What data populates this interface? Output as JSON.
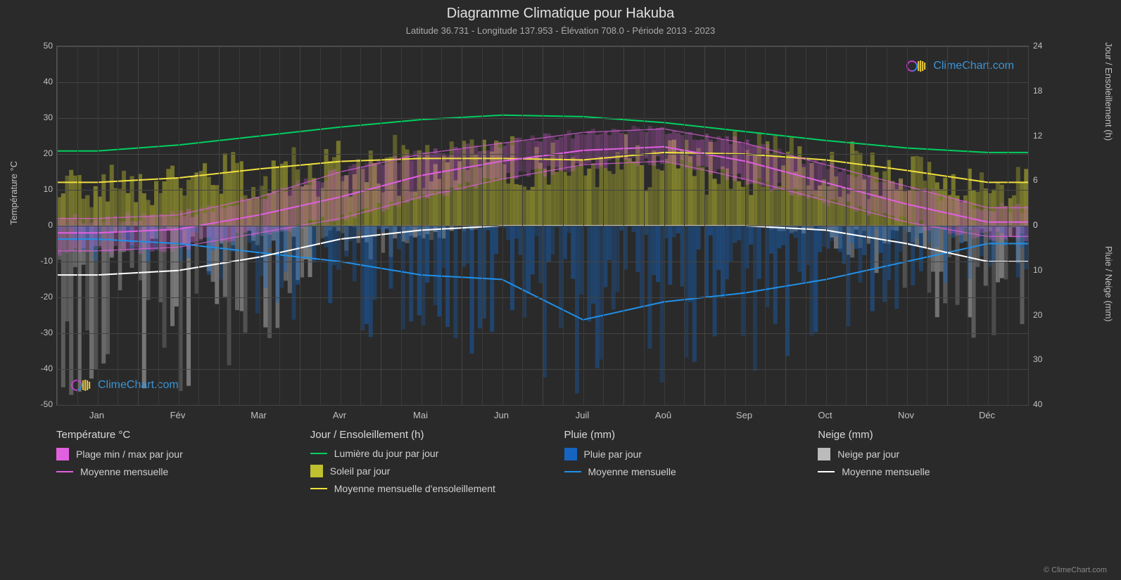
{
  "title": "Diagramme Climatique pour Hakuba",
  "subtitle": "Latitude 36.731 - Longitude 137.953 - Élévation 708.0 - Période 2013 - 2023",
  "brand_text": "ClimeChart.com",
  "copyright": "© ClimeChart.com",
  "background_color": "#2a2a2a",
  "grid_color": "#444444",
  "grid_sub_color": "#3a3a3a",
  "text_color": "#d0d0d0",
  "brand_color": "#3ca0e8",
  "logo_colors": {
    "ring": "#d040d8",
    "stripes": "#f0d040"
  },
  "axes": {
    "x": {
      "labels": [
        "Jan",
        "Fév",
        "Mar",
        "Avr",
        "Mai",
        "Jun",
        "Juil",
        "Aoû",
        "Sep",
        "Oct",
        "Nov",
        "Déc"
      ]
    },
    "y_left_temp": {
      "title": "Température °C",
      "min": -50,
      "max": 50,
      "step": 10
    },
    "y_right_top_daylight": {
      "title": "Jour / Ensoleillement (h)",
      "min": 0,
      "max": 24,
      "step": 6
    },
    "y_right_bot_precip": {
      "title": "Pluie / Neige (mm)",
      "min": 0,
      "max": 40,
      "step": 10
    }
  },
  "series": {
    "daylight_hours": {
      "color": "#00d060",
      "values": [
        10.0,
        10.8,
        12.0,
        13.2,
        14.2,
        14.8,
        14.6,
        13.8,
        12.6,
        11.4,
        10.4,
        9.8
      ]
    },
    "sunshine_avg": {
      "color": "#f0e040",
      "values": [
        5.8,
        6.4,
        7.6,
        8.6,
        9.0,
        9.0,
        8.8,
        9.8,
        9.6,
        8.8,
        7.4,
        5.8
      ]
    },
    "temp_avg": {
      "color": "#e060e0",
      "values": [
        -2,
        -1,
        3,
        8,
        14,
        18,
        21,
        22,
        18,
        12,
        6,
        1
      ]
    },
    "temp_max": {
      "color": "#e060e0",
      "values": [
        2,
        3,
        8,
        15,
        20,
        23,
        26,
        27,
        23,
        17,
        11,
        5
      ]
    },
    "temp_min": {
      "color": "#e060e0",
      "values": [
        -7,
        -6,
        -2,
        2,
        8,
        13,
        17,
        18,
        13,
        7,
        1,
        -3
      ]
    },
    "rain_avg_mm": {
      "color": "#2090e8",
      "values": [
        3,
        4,
        6,
        8,
        11,
        12,
        21,
        17,
        15,
        12,
        8,
        4
      ]
    },
    "snow_avg_mm": {
      "color": "#ffffff",
      "values": [
        11,
        10,
        7,
        3,
        1,
        0,
        0,
        0,
        0,
        1,
        4,
        8
      ]
    }
  },
  "bands": {
    "sunshine_daily": {
      "color": "#bfbf30",
      "opacity": 0.55,
      "max_hours_by_month": [
        8,
        9,
        11,
        12,
        12.5,
        12,
        12,
        13,
        13,
        12,
        10,
        8
      ]
    },
    "temp_range": {
      "color": "#e060e0",
      "opacity": 0.35
    },
    "rain_daily": {
      "color": "#1565c0",
      "opacity": 0.5,
      "max_mm_by_month": [
        10,
        12,
        20,
        25,
        28,
        30,
        40,
        35,
        35,
        28,
        20,
        12
      ]
    },
    "snow_daily": {
      "color": "#bbbbbb",
      "opacity": 0.55,
      "max_mm_by_month": [
        40,
        40,
        30,
        12,
        4,
        0,
        0,
        0,
        0,
        4,
        15,
        30
      ]
    }
  },
  "legend": {
    "cols": [
      {
        "title": "Température °C",
        "items": [
          {
            "type": "box",
            "color": "#e060e0",
            "label": "Plage min / max par jour"
          },
          {
            "type": "line",
            "color": "#e060e0",
            "label": "Moyenne mensuelle"
          }
        ]
      },
      {
        "title": "Jour / Ensoleillement (h)",
        "items": [
          {
            "type": "line",
            "color": "#00d060",
            "label": "Lumière du jour par jour"
          },
          {
            "type": "box",
            "color": "#bfbf30",
            "label": "Soleil par jour"
          },
          {
            "type": "line",
            "color": "#f0e040",
            "label": "Moyenne mensuelle d'ensoleillement"
          }
        ]
      },
      {
        "title": "Pluie (mm)",
        "items": [
          {
            "type": "box",
            "color": "#1565c0",
            "label": "Pluie par jour"
          },
          {
            "type": "line",
            "color": "#2090e8",
            "label": "Moyenne mensuelle"
          }
        ]
      },
      {
        "title": "Neige (mm)",
        "items": [
          {
            "type": "box",
            "color": "#bbbbbb",
            "label": "Neige par jour"
          },
          {
            "type": "line",
            "color": "#ffffff",
            "label": "Moyenne mensuelle"
          }
        ]
      }
    ]
  }
}
